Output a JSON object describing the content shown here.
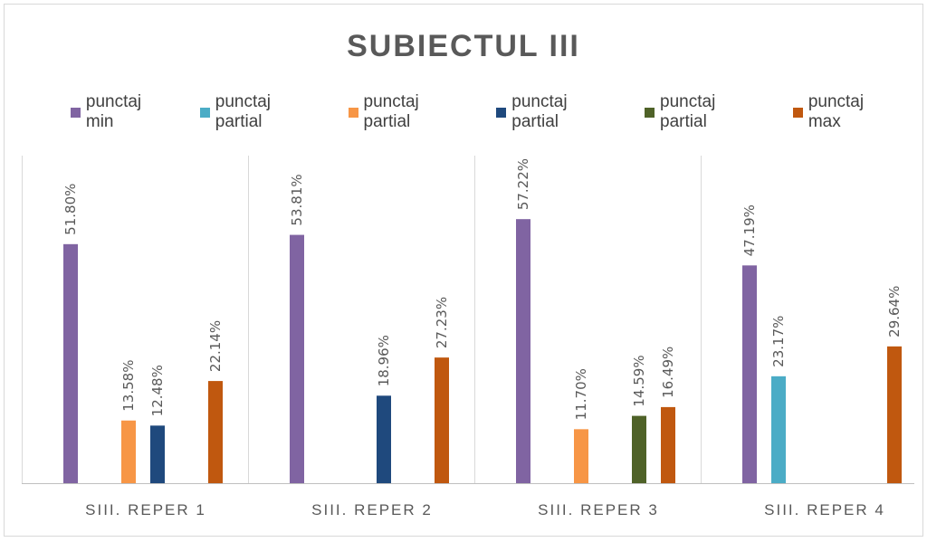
{
  "chart_data": {
    "type": "bar",
    "title": "SUBIECTUL III",
    "xlabel": "",
    "ylabel": "",
    "ylim": [
      0,
      70
    ],
    "grid": false,
    "legend_position": "top",
    "categories": [
      "SIII. REPER 1",
      "SIII. REPER 2",
      "SIII. REPER 3",
      "SIII. REPER 4"
    ],
    "series": [
      {
        "name": "punctaj min",
        "color": "#8064a2",
        "values": [
          51.8,
          53.81,
          57.22,
          47.19
        ]
      },
      {
        "name": "punctaj partial",
        "color": "#4bacc6",
        "values": [
          null,
          null,
          null,
          23.17
        ]
      },
      {
        "name": "punctaj partial",
        "color": "#f79646",
        "values": [
          13.58,
          null,
          11.7,
          null
        ]
      },
      {
        "name": "punctaj partial",
        "color": "#1f497d",
        "values": [
          12.48,
          18.96,
          null,
          null
        ]
      },
      {
        "name": "punctaj partial",
        "color": "#4f6228",
        "values": [
          null,
          null,
          14.59,
          null
        ]
      },
      {
        "name": "punctaj max",
        "color": "#c0580f",
        "values": [
          22.14,
          27.23,
          16.49,
          29.64
        ]
      }
    ],
    "data_labels": {
      "format": "percent_2dp",
      "strings": [
        [
          "51.80%",
          "",
          "13.58%",
          "12.48%",
          "",
          "22.14%"
        ],
        [
          "53.81%",
          "",
          "",
          "18.96%",
          "",
          "27.23%"
        ],
        [
          "57.22%",
          "",
          "11.70%",
          "",
          "14.59%",
          "16.49%"
        ],
        [
          "47.19%",
          "23.17%",
          "",
          "",
          "",
          "29.64%"
        ]
      ]
    }
  }
}
